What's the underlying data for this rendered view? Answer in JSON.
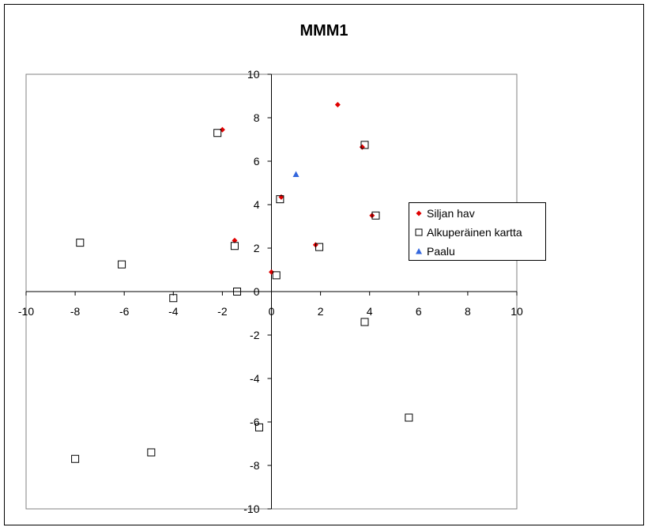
{
  "chart_data": {
    "type": "scatter",
    "title": "MMM1",
    "xlim": [
      -10,
      10
    ],
    "ylim": [
      -10,
      10
    ],
    "xticks": [
      -10,
      -8,
      -6,
      -4,
      -2,
      0,
      2,
      4,
      6,
      8,
      10
    ],
    "yticks": [
      -10,
      -8,
      -6,
      -4,
      -2,
      0,
      2,
      4,
      6,
      8,
      10
    ],
    "grid": false,
    "legend_position": "right",
    "series": [
      {
        "name": "Siljan hav",
        "marker": "diamond",
        "color": "#e00000",
        "points": [
          [
            -2.0,
            7.45
          ],
          [
            2.7,
            8.6
          ],
          [
            3.7,
            6.65
          ],
          [
            0.4,
            4.35
          ],
          [
            4.1,
            3.5
          ],
          [
            -1.5,
            2.35
          ],
          [
            1.8,
            2.15
          ],
          [
            0.0,
            0.9
          ]
        ]
      },
      {
        "name": "Alkuperäinen kartta",
        "marker": "square-open",
        "color": "#000000",
        "points": [
          [
            -2.2,
            7.3
          ],
          [
            3.8,
            6.75
          ],
          [
            0.35,
            4.25
          ],
          [
            4.25,
            3.5
          ],
          [
            -1.5,
            2.1
          ],
          [
            1.95,
            2.05
          ],
          [
            0.2,
            0.75
          ],
          [
            -7.8,
            2.25
          ],
          [
            -6.1,
            1.25
          ],
          [
            -1.4,
            0.0
          ],
          [
            -4.0,
            -0.3
          ],
          [
            3.8,
            -1.4
          ],
          [
            5.6,
            -5.8
          ],
          [
            -0.5,
            -6.25
          ],
          [
            -4.9,
            -7.4
          ],
          [
            -8.0,
            -7.7
          ]
        ]
      },
      {
        "name": "Paalu",
        "marker": "triangle",
        "color": "#3366dd",
        "points": [
          [
            1.0,
            5.4
          ]
        ]
      }
    ]
  }
}
